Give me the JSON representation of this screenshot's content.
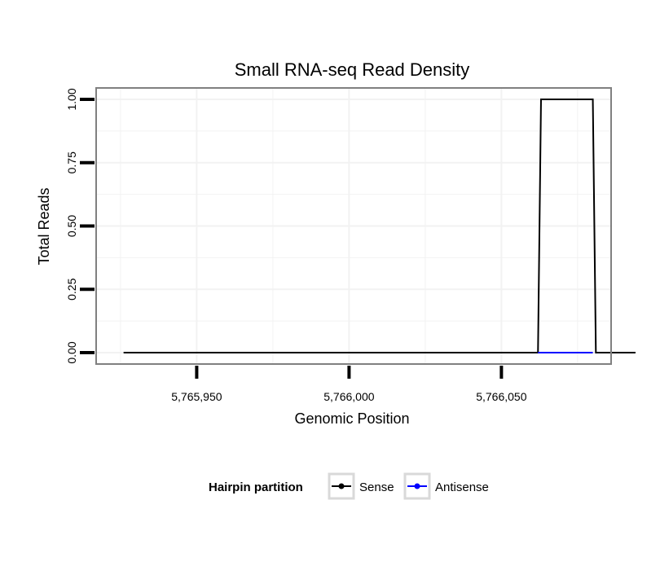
{
  "chart_data": {
    "type": "line",
    "title": "Small RNA-seq Read Density",
    "xlabel": "Genomic Position",
    "ylabel": "Total Reads",
    "xlim": [
      5765917,
      5766086
    ],
    "ylim": [
      -0.045,
      1.045
    ],
    "x_ticks": [
      5765950,
      5766000,
      5766050
    ],
    "x_tick_labels": [
      "5,765,950",
      "5,766,000",
      "5,766,050"
    ],
    "y_ticks": [
      0,
      0.25,
      0.5,
      0.75,
      1.0
    ],
    "y_tick_labels": [
      "0.00",
      "0.25",
      "0.50",
      "0.75",
      "1.00"
    ],
    "grid": true,
    "legend_position": "bottom",
    "legend_title": "Hairpin partition",
    "series": [
      {
        "name": "Sense",
        "color": "#000000",
        "x": [
          5765926,
          5766062,
          5766063,
          5766080,
          5766081,
          5766094
        ],
        "y": [
          0,
          0,
          1,
          1,
          0,
          0
        ]
      },
      {
        "name": "Antisense",
        "color": "#0000ff",
        "x": [
          5766062,
          5766080
        ],
        "y": [
          0,
          0
        ]
      }
    ]
  }
}
